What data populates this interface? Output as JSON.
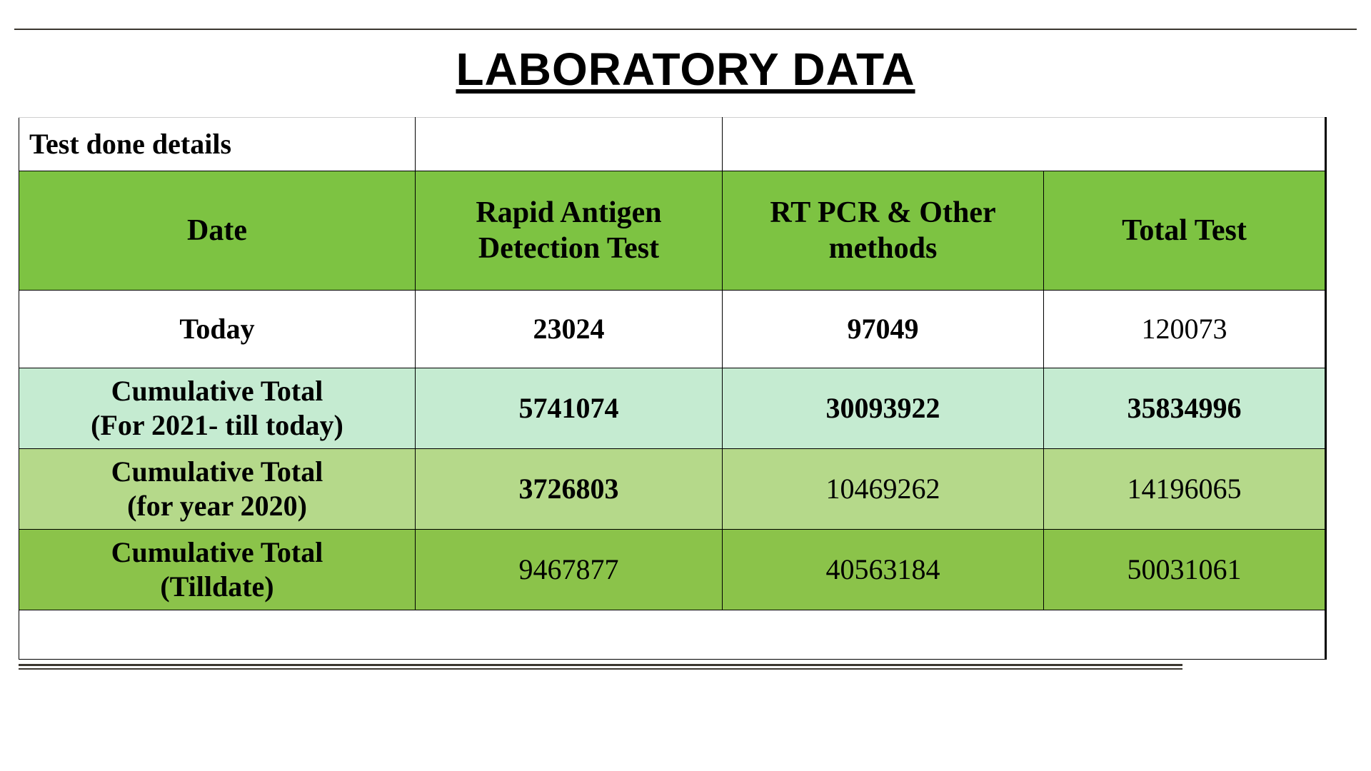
{
  "title": "LABORATORY DATA",
  "table": {
    "caption": "Test done details",
    "columns": [
      "Date",
      "Rapid Antigen Detection Test",
      "RT PCR & Other methods",
      "Total Test"
    ],
    "rows": [
      {
        "label": "Today",
        "values": [
          "23024",
          "97049",
          "120073"
        ],
        "bg": "#ffffff",
        "value_bold": [
          true,
          true,
          false
        ]
      },
      {
        "label": "Cumulative Total (For 2021- till today)",
        "values": [
          "5741074",
          "30093922",
          "35834996"
        ],
        "bg": "#c5ebd1",
        "value_bold": [
          true,
          true,
          true
        ]
      },
      {
        "label": "Cumulative Total (for year 2020)",
        "values": [
          "3726803",
          "10469262",
          "14196065"
        ],
        "bg": "#b5d98a",
        "value_bold": [
          true,
          false,
          false
        ]
      },
      {
        "label": "Cumulative Total (Tilldate)",
        "values": [
          "9467877",
          "40563184",
          "50031061"
        ],
        "bg": "#8bc34a",
        "value_bold": [
          false,
          false,
          false
        ]
      }
    ],
    "header_bg": "#7dc342",
    "border_color": "#000000",
    "title_fontsize": 64,
    "header_fontsize": 42,
    "cell_fontsize": 40
  }
}
